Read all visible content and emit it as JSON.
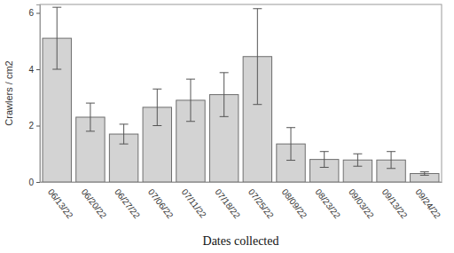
{
  "chart_data": {
    "type": "bar",
    "xlabel": "Dates collected",
    "ylabel": "Crawlers / cm2",
    "categories": [
      "06/13/22",
      "06/20/22",
      "06/27/22",
      "07/06/22",
      "07/11/22",
      "07/18/22",
      "07/25/22",
      "08/09/22",
      "08/23/22",
      "09/03/22",
      "09/13/22",
      "09/24/22"
    ],
    "values": [
      5.1,
      2.3,
      1.7,
      2.65,
      2.9,
      3.1,
      4.45,
      1.35,
      0.8,
      0.78,
      0.78,
      0.3
    ],
    "errors": [
      1.1,
      0.5,
      0.35,
      0.65,
      0.75,
      0.78,
      1.7,
      0.58,
      0.28,
      0.22,
      0.3,
      0.06
    ],
    "color": "#d3d3d3",
    "ylim": [
      0,
      6.3
    ],
    "yticks": [
      0,
      2,
      4,
      6
    ],
    "grid": false
  }
}
